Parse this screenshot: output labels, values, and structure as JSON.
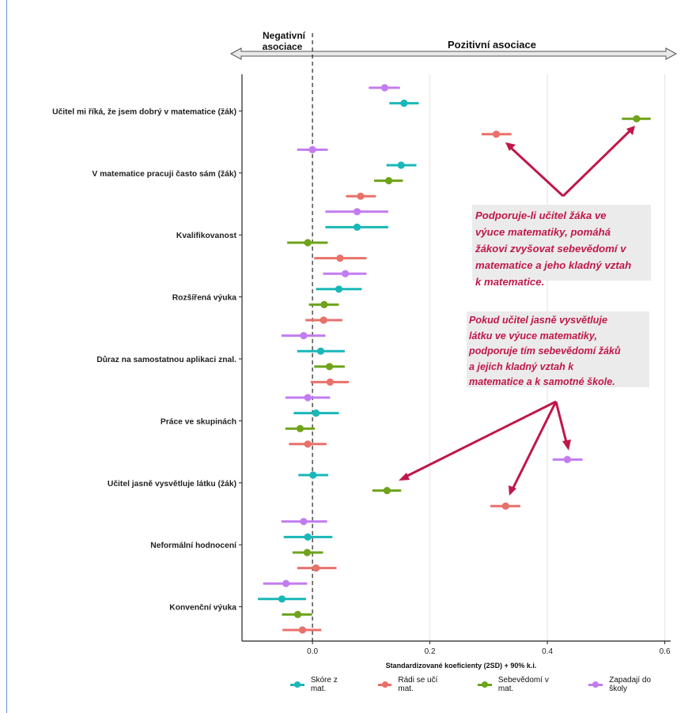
{
  "header": {
    "negative_label_line1": "Negativní",
    "negative_label_line2": "asociace",
    "positive_label": "Pozitivní asociace"
  },
  "callouts": [
    {
      "lines": [
        "Podporuje-li učitel žáka ve",
        "výuce matematiky, pomáhá",
        "žákovi zvyšovat sebevědomí v",
        "matematice a jeho kladný vztah",
        "k matematice."
      ]
    },
    {
      "lines": [
        "Pokud učitel jasně vysvětluje",
        "látku ve výuce matematiky,",
        "podporuje tím sebevědomí žáků",
        "a jejich kladný vztah k",
        "matematice a k samotné škole."
      ]
    }
  ],
  "colors": {
    "skore": "#1ab7b8",
    "radi": "#e8716a",
    "sebevedomi": "#6ea31b",
    "zapadaji": "#c37cf0",
    "arrow": "#c0174a",
    "callout_bg": "#ebebeb"
  },
  "chart_data": {
    "type": "scatter",
    "subtype": "coefficient-plot-with-intervals",
    "xlabel": "Standardizované koeficienty (2SD) + 90% k.i.",
    "ylabel": "",
    "xlim": [
      -0.12,
      0.61
    ],
    "xticks": [
      0.0,
      0.2,
      0.4,
      0.6
    ],
    "xtick_labels": [
      "0.0",
      "0.2",
      "0.4",
      "0.6"
    ],
    "grid": "vertical",
    "reference_line": 0,
    "legend_position": "bottom",
    "series": [
      {
        "name": "Skóre z mat.",
        "color": "#1ab7b8"
      },
      {
        "name": "Rádi se učí mat.",
        "color": "#e8716a"
      },
      {
        "name": "Sebevědomí v mat.",
        "color": "#6ea31b"
      },
      {
        "name": "Zapadají do školy",
        "color": "#c37cf0"
      }
    ],
    "categories": [
      {
        "label": "Učitel mi říká, že jsem dobrý v matematice (žák)",
        "values": [
          {
            "series": "Zapadají do školy",
            "est": 0.123,
            "lo": 0.096,
            "hi": 0.149
          },
          {
            "series": "Skóre z mat.",
            "est": 0.156,
            "lo": 0.131,
            "hi": 0.181
          },
          {
            "series": "Sebevědomí v mat.",
            "est": 0.552,
            "lo": 0.527,
            "hi": 0.576
          },
          {
            "series": "Rádi se učí mat.",
            "est": 0.313,
            "lo": 0.288,
            "hi": 0.339
          }
        ]
      },
      {
        "label": "V matematice pracuji často sám (žák)",
        "values": [
          {
            "series": "Zapadají do školy",
            "est": 0.0,
            "lo": -0.026,
            "hi": 0.026
          },
          {
            "series": "Skóre z mat.",
            "est": 0.151,
            "lo": 0.126,
            "hi": 0.177
          },
          {
            "series": "Sebevědomí v mat.",
            "est": 0.13,
            "lo": 0.105,
            "hi": 0.154
          },
          {
            "series": "Rádi se učí mat.",
            "est": 0.082,
            "lo": 0.057,
            "hi": 0.108
          }
        ]
      },
      {
        "label": "Kvalifikovanost",
        "values": [
          {
            "series": "Zapadají do školy",
            "est": 0.076,
            "lo": 0.022,
            "hi": 0.129
          },
          {
            "series": "Skóre z mat.",
            "est": 0.076,
            "lo": 0.022,
            "hi": 0.129
          },
          {
            "series": "Sebevědomí v mat.",
            "est": -0.008,
            "lo": -0.043,
            "hi": 0.026
          },
          {
            "series": "Rádi se učí mat.",
            "est": 0.047,
            "lo": 0.003,
            "hi": 0.092
          }
        ]
      },
      {
        "label": "Rozšířená výuka",
        "values": [
          {
            "series": "Zapadají do školy",
            "est": 0.056,
            "lo": 0.018,
            "hi": 0.092
          },
          {
            "series": "Skóre z mat.",
            "est": 0.045,
            "lo": 0.006,
            "hi": 0.084
          },
          {
            "series": "Sebevědomí v mat.",
            "est": 0.02,
            "lo": -0.006,
            "hi": 0.045
          },
          {
            "series": "Rádi se učí mat.",
            "est": 0.019,
            "lo": -0.012,
            "hi": 0.051
          }
        ]
      },
      {
        "label": "Důraz na samostatnou aplikaci znal.",
        "values": [
          {
            "series": "Zapadají do školy",
            "est": -0.015,
            "lo": -0.053,
            "hi": 0.022
          },
          {
            "series": "Skóre z mat.",
            "est": 0.014,
            "lo": -0.026,
            "hi": 0.055
          },
          {
            "series": "Sebevědomí v mat.",
            "est": 0.029,
            "lo": 0.003,
            "hi": 0.055
          },
          {
            "series": "Rádi se učí mat.",
            "est": 0.03,
            "lo": -0.003,
            "hi": 0.062
          }
        ]
      },
      {
        "label": "Práce ve skupinách",
        "values": [
          {
            "series": "Zapadají do školy",
            "est": -0.008,
            "lo": -0.046,
            "hi": 0.03
          },
          {
            "series": "Skóre z mat.",
            "est": 0.006,
            "lo": -0.032,
            "hi": 0.045
          },
          {
            "series": "Sebevědomí v mat.",
            "est": -0.021,
            "lo": -0.046,
            "hi": 0.004
          },
          {
            "series": "Rádi se učí mat.",
            "est": -0.008,
            "lo": -0.04,
            "hi": 0.024
          }
        ]
      },
      {
        "label": "Učitel jasně vysvětluje látku (žák)",
        "values": [
          {
            "series": "Zapadají do školy",
            "est": 0.434,
            "lo": 0.409,
            "hi": 0.46
          },
          {
            "series": "Skóre z mat.",
            "est": 0.001,
            "lo": -0.024,
            "hi": 0.027
          },
          {
            "series": "Sebevědomí v mat.",
            "est": 0.127,
            "lo": 0.102,
            "hi": 0.151
          },
          {
            "series": "Rádi se učí mat.",
            "est": 0.329,
            "lo": 0.303,
            "hi": 0.354
          }
        ]
      },
      {
        "label": "Neformální hodnocení",
        "values": [
          {
            "series": "Zapadají do školy",
            "est": -0.015,
            "lo": -0.053,
            "hi": 0.025
          },
          {
            "series": "Skóre z mat.",
            "est": -0.008,
            "lo": -0.049,
            "hi": 0.034
          },
          {
            "series": "Sebevědomí v mat.",
            "est": -0.009,
            "lo": -0.034,
            "hi": 0.018
          },
          {
            "series": "Rádi se učí mat.",
            "est": 0.006,
            "lo": -0.026,
            "hi": 0.041
          }
        ]
      },
      {
        "label": "Konvenční výuka",
        "values": [
          {
            "series": "Zapadají do školy",
            "est": -0.045,
            "lo": -0.084,
            "hi": -0.009
          },
          {
            "series": "Skóre z mat.",
            "est": -0.052,
            "lo": -0.093,
            "hi": -0.011
          },
          {
            "series": "Sebevědomí v mat.",
            "est": -0.025,
            "lo": -0.052,
            "hi": -0.001
          },
          {
            "series": "Rádi se učí mat.",
            "est": -0.017,
            "lo": -0.051,
            "hi": 0.015
          }
        ]
      }
    ]
  }
}
